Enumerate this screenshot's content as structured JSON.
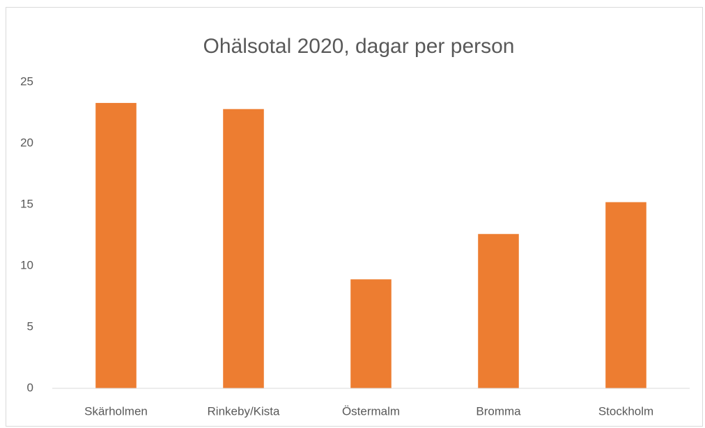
{
  "chart_data": {
    "type": "bar",
    "title": "Ohälsotal 2020, dagar per person",
    "categories": [
      "Skärholmen",
      "Rinkeby/Kista",
      "Östermalm",
      "Bromma",
      "Stockholm"
    ],
    "values": [
      23.3,
      22.8,
      8.9,
      12.6,
      15.2
    ],
    "color": "#ed7d31",
    "ylim": [
      0,
      25
    ],
    "yticks": [
      0,
      5,
      10,
      15,
      20,
      25
    ],
    "grid": false
  }
}
